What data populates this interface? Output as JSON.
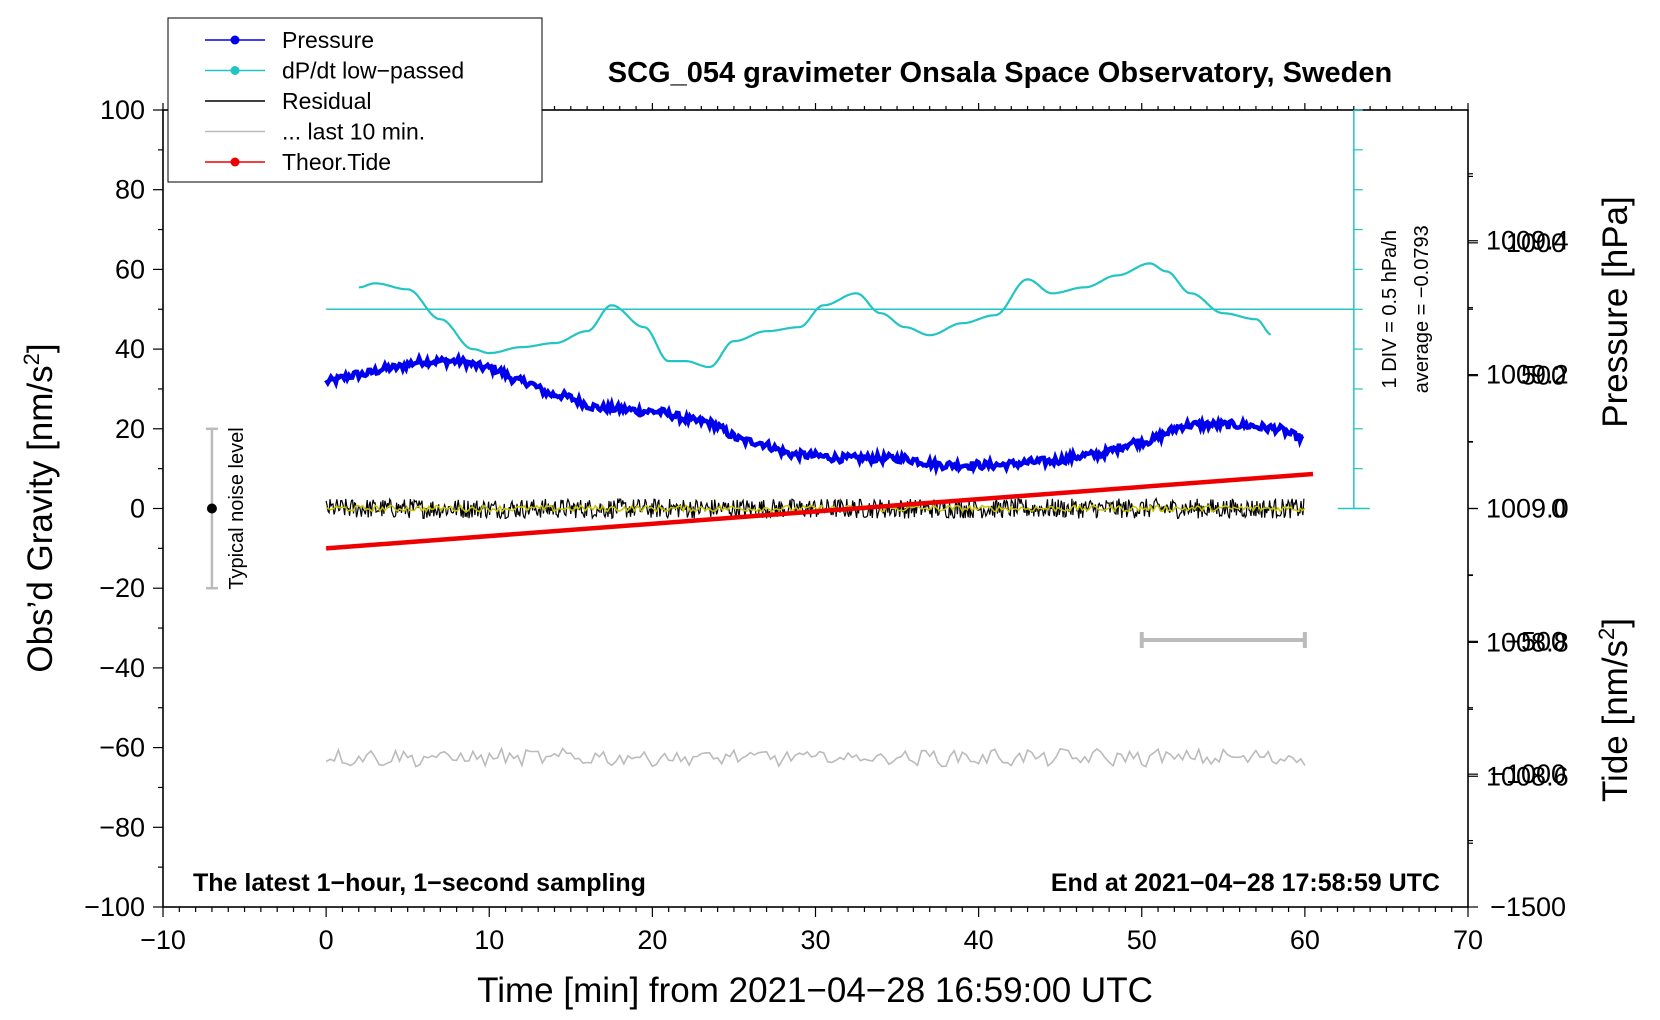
{
  "chart_data": {
    "type": "line",
    "title": "SCG_054 gravimeter Onsala Space Observatory, Sweden",
    "xlabel": "Time [min] from 2021−04−28 16:59:00 UTC",
    "ylabel_left": "Obs’d Gravity [nm/s²]",
    "ylabel_left_main": "Obs’d Gravity [nm/s",
    "ylabel_left_sup": "2",
    "ylabel_left_close": "]",
    "ylabel_right_pressure": "Pressure [hPa]",
    "ylabel_right_tide": "Tide [nm/s²]",
    "ylabel_right_tide_main": "Tide [nm/s",
    "ylabel_right_tide_sup": "2",
    "ylabel_right_tide_close": "]",
    "xlim": [
      -10,
      70
    ],
    "ylim": [
      -100,
      100
    ],
    "pressure_lim": [
      1008.4047,
      1009.5953
    ],
    "tide_lim": [
      -1500,
      1500
    ],
    "x_ticks": [
      {
        "value": -10,
        "label": "−10"
      },
      {
        "value": 0,
        "label": "0"
      },
      {
        "value": 10,
        "label": "10"
      },
      {
        "value": 20,
        "label": "20"
      },
      {
        "value": 30,
        "label": "30"
      },
      {
        "value": 40,
        "label": "40"
      },
      {
        "value": 50,
        "label": "50"
      },
      {
        "value": 60,
        "label": "60"
      },
      {
        "value": 70,
        "label": "70"
      }
    ],
    "y_ticks": [
      {
        "value": 100,
        "label": "100"
      },
      {
        "value": 80,
        "label": "80"
      },
      {
        "value": 60,
        "label": "60"
      },
      {
        "value": 40,
        "label": "40"
      },
      {
        "value": 20,
        "label": "20"
      },
      {
        "value": 0,
        "label": "0"
      },
      {
        "value": -20,
        "label": "−20"
      },
      {
        "value": -40,
        "label": "−40"
      },
      {
        "value": -60,
        "label": "−60"
      },
      {
        "value": -80,
        "label": "−80"
      },
      {
        "value": -100,
        "label": "−100"
      }
    ],
    "pressure_ticks": [
      {
        "value": 1009.4,
        "label": "1009.4"
      },
      {
        "value": 1009.2,
        "label": "1009.2"
      },
      {
        "value": 1009.0,
        "label": "1009.0"
      },
      {
        "value": 1008.8,
        "label": "1008.8"
      },
      {
        "value": 1008.6,
        "label": "1008.6"
      }
    ],
    "tide_ticks": [
      {
        "value": 1000,
        "label": "1000"
      },
      {
        "value": 500,
        "label": "500"
      },
      {
        "value": 0,
        "label": "0"
      },
      {
        "value": -500,
        "label": "−500"
      },
      {
        "value": -1000,
        "label": "−1000"
      },
      {
        "value": -1500,
        "label": "−1500"
      }
    ],
    "legend": [
      {
        "label": "Pressure",
        "color": "#0000ee",
        "marker": true
      },
      {
        "label": "dP/dt low−passed",
        "color": "#22c4c4",
        "marker": true
      },
      {
        "label": "Residual",
        "color": "#000000",
        "marker": false
      },
      {
        "label": "... last 10 min.",
        "color": "#bbbbbb",
        "marker": false
      },
      {
        "label": "Theor.Tide",
        "color": "#ee0000",
        "marker": true
      }
    ],
    "series": [
      {
        "name": "Pressure",
        "color": "#0000ee",
        "axis": "pressure",
        "x": [
          0,
          2,
          4,
          6,
          8,
          10,
          12,
          14,
          17,
          20,
          23,
          26,
          29,
          32,
          35,
          38,
          41,
          44,
          47,
          50,
          53,
          56,
          58,
          60
        ],
        "values": [
          1009.19,
          1009.2,
          1009.21,
          1009.22,
          1009.22,
          1009.21,
          1009.19,
          1009.17,
          1009.15,
          1009.145,
          1009.13,
          1009.1,
          1009.08,
          1009.075,
          1009.075,
          1009.065,
          1009.065,
          1009.07,
          1009.08,
          1009.1,
          1009.125,
          1009.125,
          1009.12,
          1009.105
        ]
      },
      {
        "name": "dP/dt low−passed",
        "color": "#22c4c4",
        "axis": "gravity",
        "x": [
          2,
          3,
          5,
          7,
          9,
          10,
          12,
          14,
          16,
          17.5,
          19.5,
          21,
          22,
          23.5,
          25,
          27,
          29,
          30.5,
          32.5,
          34,
          35.5,
          37,
          39,
          41,
          43,
          44.5,
          46.5,
          48.5,
          50.5,
          51.5,
          53,
          55,
          57,
          58
        ],
        "values": [
          55.5,
          56.5,
          55,
          47.5,
          40,
          39,
          40.5,
          41.5,
          44.5,
          51,
          45.5,
          37,
          37,
          35.5,
          42,
          44.5,
          45.5,
          51,
          54,
          49,
          45.5,
          43.5,
          46.5,
          48.5,
          57.5,
          54,
          55.5,
          58.5,
          61.5,
          59.5,
          54,
          49,
          47.5,
          43.5
        ]
      },
      {
        "name": "Residual",
        "color": "#000000",
        "axis": "gravity",
        "x_range": [
          0,
          60
        ],
        "baseline": 0,
        "amplitude": 2.5
      },
      {
        "name": "Residual smoothed",
        "color": "#c8c400",
        "axis": "gravity",
        "x_range": [
          0,
          60
        ],
        "baseline": 0,
        "amplitude": 0.8
      },
      {
        "name": "... last 10 min.",
        "color": "#bbbbbb",
        "axis": "gravity",
        "x_range": [
          0,
          60
        ],
        "baseline": -62.5,
        "amplitude": 1.8
      },
      {
        "name": "Theor.Tide",
        "color": "#ee0000",
        "axis": "tide",
        "x": [
          0,
          60.5
        ],
        "values": [
          -150,
          130
        ]
      }
    ],
    "scale_bar": {
      "label_div": "1 DIV = 0.5 hPa/h",
      "label_avg": "average = −0.0793",
      "x": 63,
      "y_top": 100,
      "y_bottom": 0,
      "baseline_y": 50,
      "baseline_x": [
        0,
        63
      ]
    },
    "noise_bar": {
      "label": "Typical noise level",
      "x": -7,
      "y_low": -20,
      "y_high": 20,
      "center": 0
    },
    "ten_min_bar": {
      "x_start": 50,
      "x_end": 60,
      "y": -33
    },
    "annotations": {
      "bottom_left": "The latest 1−hour, 1−second sampling",
      "bottom_right": "End at 2021−04−28 17:58:59 UTC"
    }
  }
}
